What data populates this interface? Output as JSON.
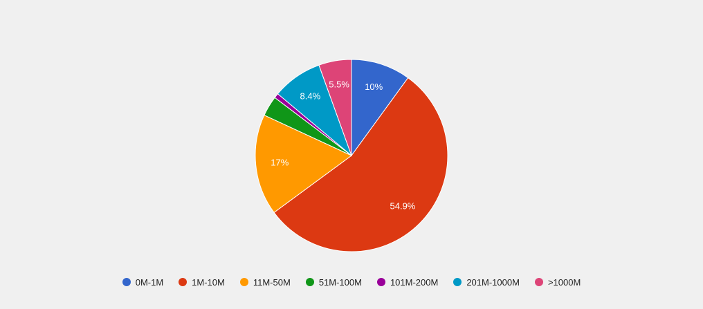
{
  "chart_data": {
    "type": "pie",
    "title": "",
    "categories": [
      "0M-1M",
      "1M-10M",
      "11M-50M",
      "51M-100M",
      "101M-200M",
      "201M-1000M",
      ">1000M"
    ],
    "values": [
      10.0,
      54.9,
      17.0,
      3.4,
      0.8,
      8.4,
      5.5
    ],
    "data_labels": [
      "10%",
      "54.9%",
      "17%",
      "",
      "",
      "8.4%",
      "5.5%"
    ],
    "colors": [
      "#3366cc",
      "#dc3912",
      "#ff9900",
      "#109618",
      "#990099",
      "#0099c6",
      "#dd4477"
    ],
    "legend_position": "bottom",
    "start_angle": "top",
    "direction": "clockwise"
  }
}
